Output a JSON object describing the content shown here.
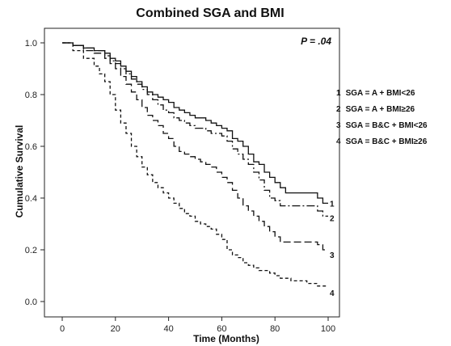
{
  "chart_data": {
    "type": "line",
    "title": "Combined SGA and BMI",
    "xlabel": "Time (Months)",
    "ylabel": "Cumulative Survival",
    "annotation": "P = .04",
    "xlim": [
      0,
      100
    ],
    "ylim": [
      0,
      1
    ],
    "xticks": [
      "0",
      "20",
      "40",
      "60",
      "80",
      "100"
    ],
    "yticks": [
      "0.0",
      "0.2",
      "0.4",
      "0.6",
      "0.8",
      "1.0"
    ],
    "grid": false,
    "legend_placement": "right",
    "series": [
      {
        "name": "SGA = A + BMI<26",
        "end_label": "1",
        "style": "solid",
        "x": [
          0,
          4,
          8,
          12,
          16,
          18,
          20,
          22,
          24,
          26,
          28,
          30,
          32,
          34,
          36,
          38,
          40,
          42,
          44,
          46,
          48,
          50,
          52,
          54,
          56,
          58,
          60,
          62,
          64,
          66,
          68,
          70,
          72,
          74,
          76,
          78,
          80,
          82,
          84,
          86,
          88,
          90,
          92,
          94,
          96,
          98
        ],
        "y": [
          1.0,
          0.99,
          0.98,
          0.97,
          0.96,
          0.94,
          0.93,
          0.91,
          0.89,
          0.87,
          0.85,
          0.83,
          0.81,
          0.8,
          0.79,
          0.78,
          0.77,
          0.75,
          0.74,
          0.73,
          0.72,
          0.71,
          0.71,
          0.7,
          0.69,
          0.68,
          0.67,
          0.66,
          0.63,
          0.62,
          0.6,
          0.57,
          0.54,
          0.53,
          0.5,
          0.48,
          0.46,
          0.44,
          0.42,
          0.42,
          0.42,
          0.42,
          0.42,
          0.42,
          0.4,
          0.38
        ]
      },
      {
        "name": "SGA = A + BMI≥26",
        "end_label": "2",
        "style": "dashdot",
        "x": [
          0,
          4,
          8,
          12,
          16,
          18,
          20,
          22,
          24,
          26,
          28,
          30,
          32,
          34,
          36,
          38,
          40,
          42,
          44,
          46,
          48,
          50,
          52,
          54,
          56,
          58,
          60,
          62,
          64,
          66,
          68,
          70,
          72,
          74,
          76,
          78,
          80,
          82,
          84,
          86,
          88,
          90,
          92,
          94,
          96,
          98
        ],
        "y": [
          1.0,
          0.99,
          0.98,
          0.97,
          0.95,
          0.93,
          0.92,
          0.9,
          0.88,
          0.86,
          0.84,
          0.82,
          0.8,
          0.78,
          0.76,
          0.74,
          0.73,
          0.71,
          0.7,
          0.69,
          0.68,
          0.67,
          0.67,
          0.66,
          0.65,
          0.65,
          0.64,
          0.62,
          0.59,
          0.57,
          0.55,
          0.53,
          0.5,
          0.47,
          0.43,
          0.4,
          0.39,
          0.37,
          0.37,
          0.37,
          0.37,
          0.37,
          0.37,
          0.37,
          0.35,
          0.33
        ]
      },
      {
        "name": "SGA = B&C + BMI<26",
        "end_label": "3",
        "style": "longdash",
        "x": [
          0,
          4,
          8,
          12,
          16,
          18,
          20,
          22,
          24,
          26,
          28,
          30,
          32,
          34,
          36,
          38,
          40,
          42,
          44,
          46,
          48,
          50,
          52,
          54,
          56,
          58,
          60,
          62,
          64,
          66,
          68,
          70,
          72,
          74,
          76,
          78,
          80,
          82,
          84,
          86,
          88,
          90,
          92,
          94,
          96,
          98
        ],
        "y": [
          1.0,
          0.99,
          0.97,
          0.96,
          0.94,
          0.92,
          0.9,
          0.87,
          0.84,
          0.81,
          0.78,
          0.75,
          0.72,
          0.7,
          0.68,
          0.65,
          0.63,
          0.6,
          0.58,
          0.57,
          0.56,
          0.55,
          0.54,
          0.53,
          0.52,
          0.5,
          0.48,
          0.46,
          0.43,
          0.4,
          0.37,
          0.35,
          0.33,
          0.31,
          0.29,
          0.27,
          0.25,
          0.23,
          0.23,
          0.23,
          0.23,
          0.23,
          0.23,
          0.23,
          0.22,
          0.2
        ]
      },
      {
        "name": "SGA = B&C + BMI≥26",
        "end_label": "4",
        "style": "dashed",
        "x": [
          0,
          4,
          8,
          12,
          14,
          16,
          18,
          20,
          22,
          24,
          26,
          28,
          30,
          32,
          34,
          36,
          38,
          40,
          42,
          44,
          46,
          48,
          50,
          52,
          54,
          56,
          58,
          60,
          62,
          64,
          66,
          68,
          70,
          72,
          74,
          76,
          78,
          80,
          82,
          84,
          86,
          88,
          90,
          92,
          94,
          96,
          98
        ],
        "y": [
          1.0,
          0.97,
          0.94,
          0.91,
          0.88,
          0.85,
          0.8,
          0.74,
          0.69,
          0.65,
          0.6,
          0.56,
          0.52,
          0.49,
          0.46,
          0.44,
          0.42,
          0.4,
          0.38,
          0.36,
          0.34,
          0.33,
          0.31,
          0.3,
          0.29,
          0.28,
          0.26,
          0.24,
          0.2,
          0.18,
          0.17,
          0.15,
          0.14,
          0.13,
          0.12,
          0.12,
          0.11,
          0.1,
          0.09,
          0.09,
          0.08,
          0.08,
          0.08,
          0.07,
          0.07,
          0.06,
          0.06
        ]
      }
    ]
  }
}
